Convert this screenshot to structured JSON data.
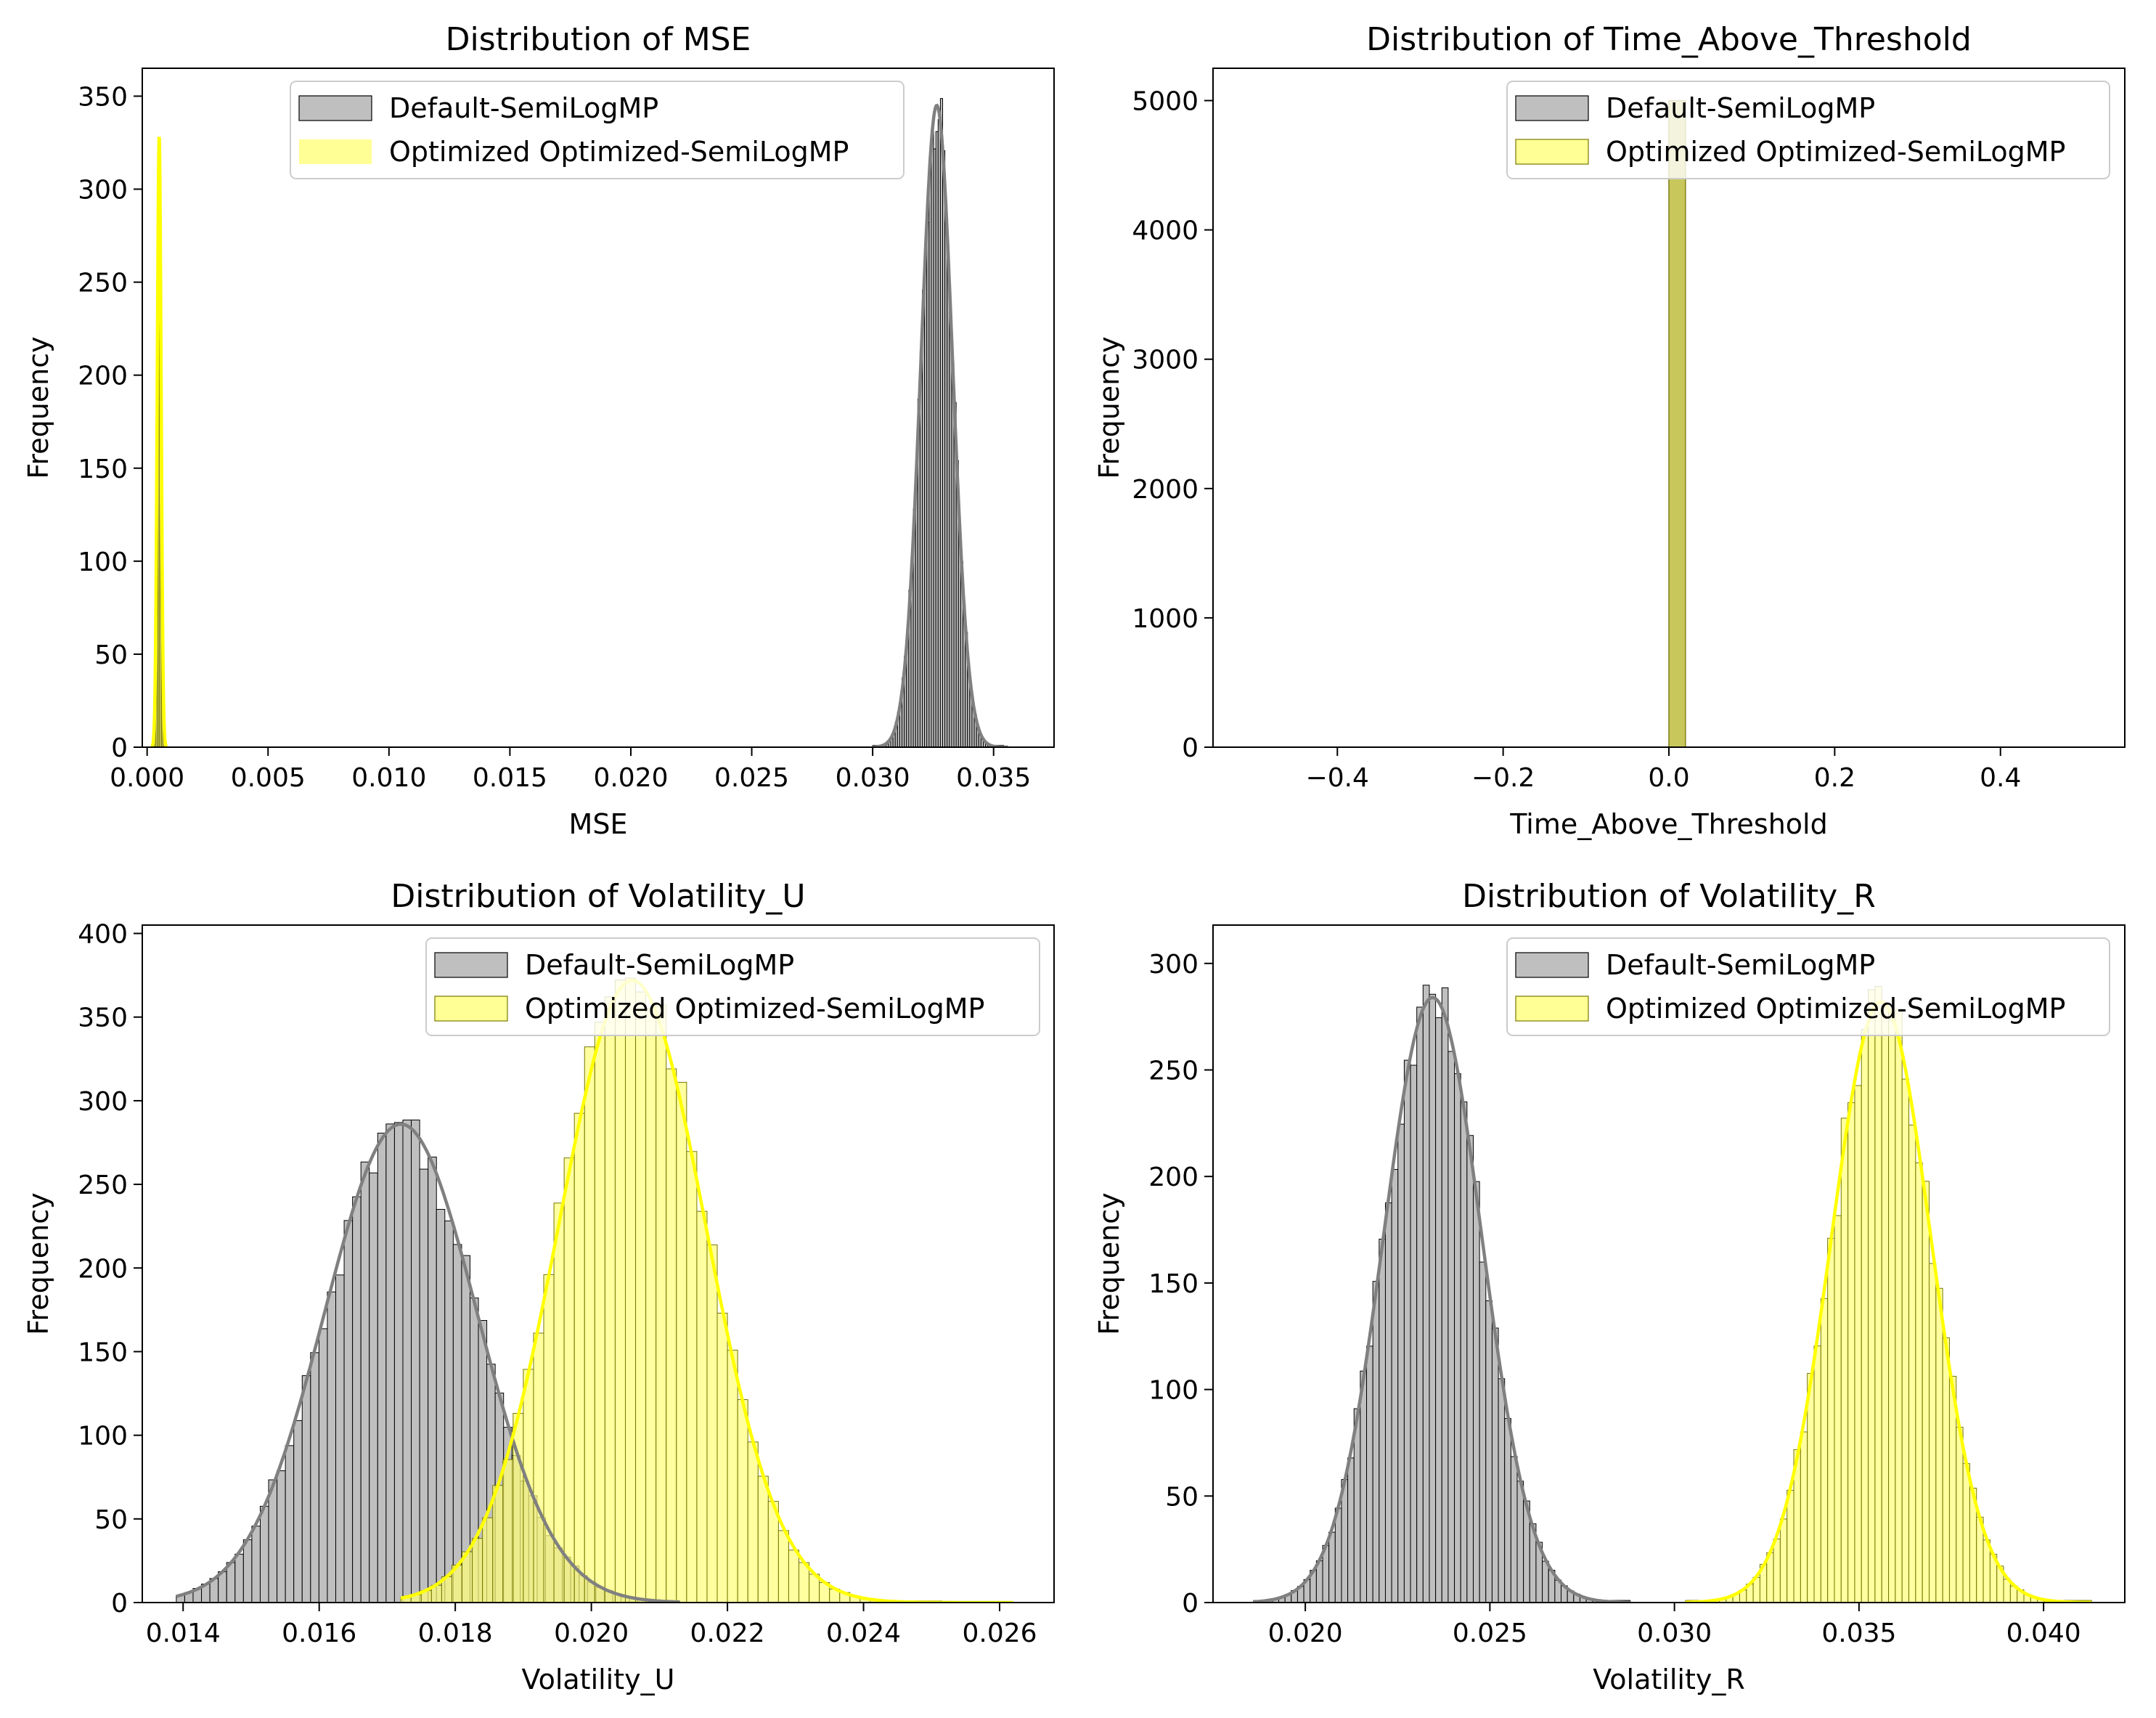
{
  "colors": {
    "default_fill": "#bfbfbf",
    "default_edge": "#000000",
    "default_kde": "#808080",
    "optimized_fill": "#ffff7a",
    "optimized_edge": "#777700",
    "optimized_kde": "#ffff00",
    "overlap_fill": "#c8c84a"
  },
  "chart_data": [
    {
      "type": "histogram",
      "title": "Distribution of MSE",
      "xlabel": "MSE",
      "ylabel": "Frequency",
      "xlim": [
        -0.0002,
        0.0375
      ],
      "ylim": [
        0,
        365
      ],
      "xticks": [
        0.0,
        0.005,
        0.01,
        0.015,
        0.02,
        0.025,
        0.03,
        0.035
      ],
      "xtick_labels": [
        "0.000",
        "0.005",
        "0.010",
        "0.015",
        "0.020",
        "0.025",
        "0.030",
        "0.035"
      ],
      "yticks": [
        0,
        50,
        100,
        150,
        200,
        250,
        300,
        350
      ],
      "ytick_labels": [
        "0",
        "50",
        "100",
        "150",
        "200",
        "250",
        "300",
        "350"
      ],
      "legend_position": "top-center",
      "series": [
        {
          "name": "Default-SemiLogMP",
          "style": "default",
          "mean": 0.03265,
          "sd": 0.00065,
          "peak": 345,
          "bins": 60,
          "range": [
            0.03,
            0.0356
          ],
          "kde": true
        },
        {
          "name": "Optimized Optimized-SemiLogMP",
          "style": "optimized",
          "mean": 0.0005,
          "sd": 8e-05,
          "peak": 328,
          "bins": 12,
          "range": [
            0.0002,
            0.0008
          ],
          "kde": true
        }
      ]
    },
    {
      "type": "histogram",
      "title": "Distribution of Time_Above_Threshold",
      "xlabel": "Time_Above_Threshold",
      "ylabel": "Frequency",
      "xlim": [
        -0.55,
        0.55
      ],
      "ylim": [
        0,
        5250
      ],
      "xticks": [
        -0.4,
        -0.2,
        0.0,
        0.2,
        0.4
      ],
      "xtick_labels": [
        "−0.4",
        "−0.2",
        "0.0",
        "0.2",
        "0.4"
      ],
      "yticks": [
        0,
        1000,
        2000,
        3000,
        4000,
        5000
      ],
      "ytick_labels": [
        "0",
        "1000",
        "2000",
        "3000",
        "4000",
        "5000"
      ],
      "legend_position": "top-right",
      "series": [
        {
          "name": "Default-SemiLogMP",
          "style": "default",
          "bar": [
            0.0,
            0.02,
            5000
          ]
        },
        {
          "name": "Optimized Optimized-SemiLogMP",
          "style": "optimized",
          "bar": [
            0.0,
            0.02,
            5000
          ]
        }
      ]
    },
    {
      "type": "histogram",
      "title": "Distribution of Volatility_U",
      "xlabel": "Volatility_U",
      "ylabel": "Frequency",
      "xlim": [
        0.0134,
        0.0268
      ],
      "ylim": [
        0,
        405
      ],
      "xticks": [
        0.014,
        0.016,
        0.018,
        0.02,
        0.022,
        0.024,
        0.026
      ],
      "xtick_labels": [
        "0.014",
        "0.016",
        "0.018",
        "0.020",
        "0.022",
        "0.024",
        "0.026"
      ],
      "yticks": [
        0,
        50,
        100,
        150,
        200,
        250,
        300,
        350,
        400
      ],
      "ytick_labels": [
        "0",
        "50",
        "100",
        "150",
        "200",
        "250",
        "300",
        "350",
        "400"
      ],
      "legend_position": "top-right",
      "series": [
        {
          "name": "Default-SemiLogMP",
          "style": "default",
          "mean": 0.0172,
          "sd": 0.00112,
          "peak": 286,
          "bins": 60,
          "range": [
            0.0139,
            0.0213
          ],
          "kde": true
        },
        {
          "name": "Optimized Optimized-SemiLogMP",
          "style": "optimized",
          "mean": 0.0206,
          "sd": 0.00108,
          "peak": 372,
          "bins": 60,
          "range": [
            0.0172,
            0.0262
          ],
          "kde": true
        }
      ]
    },
    {
      "type": "histogram",
      "title": "Distribution of Volatility_R",
      "xlabel": "Volatility_R",
      "ylabel": "Frequency",
      "xlim": [
        0.0175,
        0.0422
      ],
      "ylim": [
        0,
        318
      ],
      "xticks": [
        0.02,
        0.025,
        0.03,
        0.035,
        0.04
      ],
      "xtick_labels": [
        "0.020",
        "0.025",
        "0.030",
        "0.035",
        "0.040"
      ],
      "yticks": [
        0,
        50,
        100,
        150,
        200,
        250,
        300
      ],
      "ytick_labels": [
        "0",
        "50",
        "100",
        "150",
        "200",
        "250",
        "300"
      ],
      "legend_position": "top-right",
      "series": [
        {
          "name": "Default-SemiLogMP",
          "style": "default",
          "mean": 0.02345,
          "sd": 0.00133,
          "peak": 284,
          "bins": 60,
          "range": [
            0.0186,
            0.0288
          ],
          "kde": true
        },
        {
          "name": "Optimized Optimized-SemiLogMP",
          "style": "optimized",
          "mean": 0.0356,
          "sd": 0.00135,
          "peak": 282,
          "bins": 60,
          "range": [
            0.0303,
            0.0413
          ],
          "kde": true
        }
      ]
    }
  ]
}
